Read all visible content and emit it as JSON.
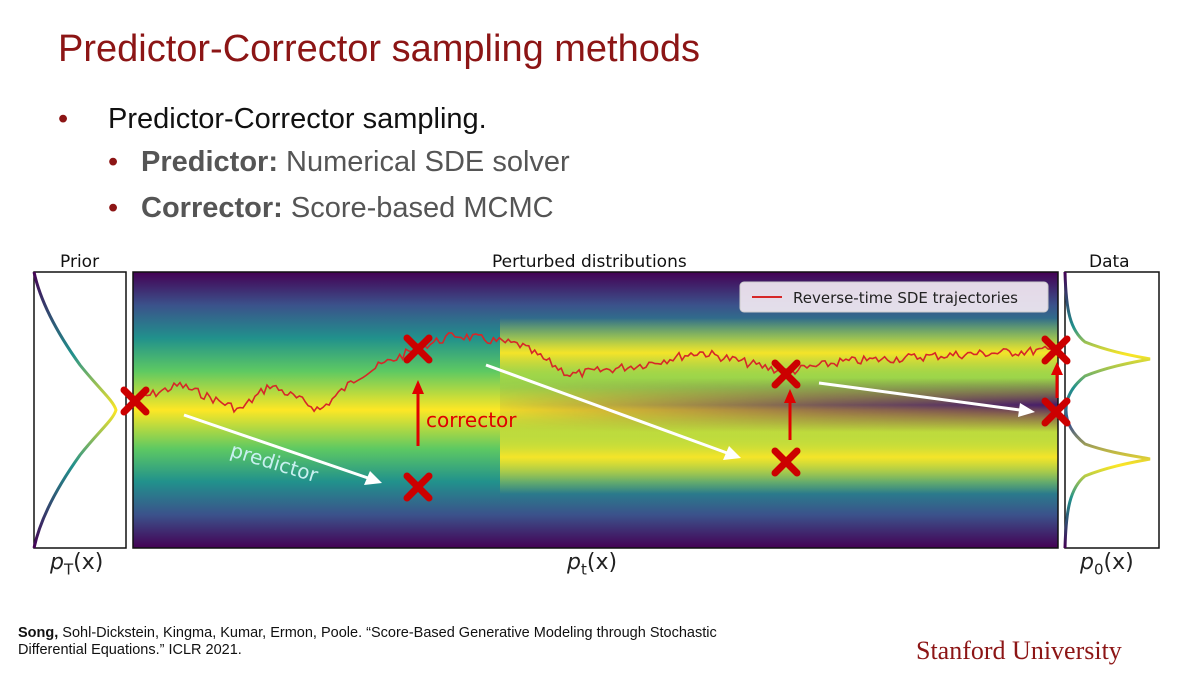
{
  "slide": {
    "title": "Predictor-Corrector sampling methods",
    "bullet_main": "Predictor-Corrector sampling.",
    "sub_bullets": [
      {
        "bold": "Predictor:",
        "text": " Numerical SDE solver"
      },
      {
        "bold": "Corrector:",
        "text": " Score-based MCMC"
      }
    ],
    "bullet_char": "•"
  },
  "figure": {
    "prior_label": "Prior",
    "perturbed_label": "Perturbed distributions",
    "data_label": "Data",
    "legend_label": "Reverse-time SDE trajectories",
    "predictor_label": "predictor",
    "corrector_label": "corrector",
    "pT_base": "p",
    "pT_sub": "T",
    "pt_base": "p",
    "pt_sub": "t",
    "p0_base": "p",
    "p0_sub": "0",
    "arg": "(x)",
    "colors": {
      "trajectory": "#d62728",
      "cross": "#cc0000",
      "arrow_white": "#ffffff",
      "arrow_red": "#e00000",
      "viridis_dark": "#440154",
      "viridis_mid": "#21918c",
      "viridis_bright": "#fde725"
    }
  },
  "citation": {
    "lead": "Song,",
    "rest": " Sohl-Dickstein, Kingma, Kumar, Ermon, Poole. “Score-Based Generative Modeling through Stochastic Differential Equations.” ICLR 2021."
  },
  "logo": "Stanford University"
}
